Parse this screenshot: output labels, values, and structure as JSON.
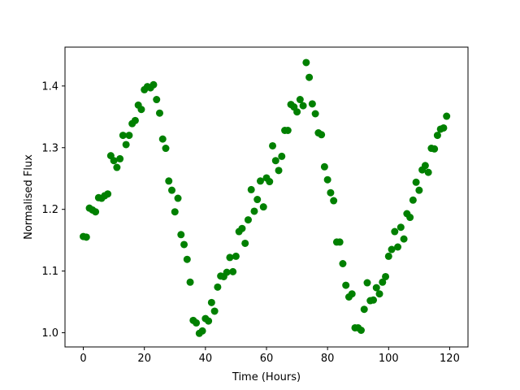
{
  "chart_data": {
    "type": "scatter",
    "title": "",
    "xlabel": "Time (Hours)",
    "ylabel": "Normalised Flux",
    "xlim": [
      -6,
      126
    ],
    "ylim": [
      0.977,
      1.463
    ],
    "xticks": [
      0,
      20,
      40,
      60,
      80,
      100,
      120
    ],
    "yticks": [
      1.0,
      1.1,
      1.2,
      1.3,
      1.4
    ],
    "grid": false,
    "legend": "none",
    "marker_color": "#008000",
    "series": [
      {
        "points": [
          [
            0,
            1.156
          ],
          [
            1,
            1.155
          ],
          [
            2,
            1.202
          ],
          [
            3,
            1.199
          ],
          [
            4,
            1.196
          ],
          [
            5,
            1.219
          ],
          [
            6,
            1.218
          ],
          [
            7,
            1.222
          ],
          [
            8,
            1.225
          ],
          [
            9,
            1.287
          ],
          [
            10,
            1.279
          ],
          [
            11,
            1.268
          ],
          [
            12,
            1.282
          ],
          [
            13,
            1.32
          ],
          [
            14,
            1.305
          ],
          [
            15,
            1.32
          ],
          [
            16,
            1.339
          ],
          [
            17,
            1.344
          ],
          [
            18,
            1.369
          ],
          [
            19,
            1.362
          ],
          [
            20,
            1.394
          ],
          [
            21,
            1.399
          ],
          [
            22,
            1.397
          ],
          [
            23,
            1.402
          ],
          [
            24,
            1.378
          ],
          [
            25,
            1.356
          ],
          [
            26,
            1.314
          ],
          [
            27,
            1.299
          ],
          [
            28,
            1.246
          ],
          [
            29,
            1.231
          ],
          [
            30,
            1.196
          ],
          [
            31,
            1.218
          ],
          [
            32,
            1.159
          ],
          [
            33,
            1.143
          ],
          [
            34,
            1.119
          ],
          [
            35,
            1.082
          ],
          [
            36,
            1.02
          ],
          [
            37,
            1.016
          ],
          [
            38,
            0.999
          ],
          [
            39,
            1.003
          ],
          [
            40,
            1.023
          ],
          [
            41,
            1.019
          ],
          [
            42,
            1.049
          ],
          [
            43,
            1.035
          ],
          [
            44,
            1.074
          ],
          [
            45,
            1.092
          ],
          [
            46,
            1.091
          ],
          [
            47,
            1.098
          ],
          [
            48,
            1.122
          ],
          [
            49,
            1.099
          ],
          [
            50,
            1.124
          ],
          [
            51,
            1.164
          ],
          [
            52,
            1.169
          ],
          [
            53,
            1.145
          ],
          [
            54,
            1.183
          ],
          [
            55,
            1.232
          ],
          [
            56,
            1.197
          ],
          [
            57,
            1.216
          ],
          [
            58,
            1.246
          ],
          [
            59,
            1.204
          ],
          [
            60,
            1.251
          ],
          [
            61,
            1.245
          ],
          [
            62,
            1.303
          ],
          [
            63,
            1.279
          ],
          [
            64,
            1.263
          ],
          [
            65,
            1.286
          ],
          [
            66,
            1.328
          ],
          [
            67,
            1.328
          ],
          [
            68,
            1.37
          ],
          [
            69,
            1.366
          ],
          [
            70,
            1.358
          ],
          [
            71,
            1.378
          ],
          [
            72,
            1.368
          ],
          [
            73,
            1.438
          ],
          [
            74,
            1.414
          ],
          [
            75,
            1.371
          ],
          [
            76,
            1.355
          ],
          [
            77,
            1.324
          ],
          [
            78,
            1.321
          ],
          [
            79,
            1.269
          ],
          [
            80,
            1.248
          ],
          [
            81,
            1.227
          ],
          [
            82,
            1.214
          ],
          [
            83,
            1.147
          ],
          [
            84,
            1.147
          ],
          [
            85,
            1.112
          ],
          [
            86,
            1.077
          ],
          [
            87,
            1.058
          ],
          [
            88,
            1.063
          ],
          [
            89,
            1.008
          ],
          [
            90,
            1.008
          ],
          [
            91,
            1.004
          ],
          [
            92,
            1.038
          ],
          [
            93,
            1.081
          ],
          [
            94,
            1.052
          ],
          [
            95,
            1.053
          ],
          [
            96,
            1.073
          ],
          [
            97,
            1.063
          ],
          [
            98,
            1.082
          ],
          [
            99,
            1.091
          ],
          [
            100,
            1.124
          ],
          [
            101,
            1.135
          ],
          [
            102,
            1.164
          ],
          [
            103,
            1.139
          ],
          [
            104,
            1.171
          ],
          [
            105,
            1.152
          ],
          [
            106,
            1.193
          ],
          [
            107,
            1.187
          ],
          [
            108,
            1.215
          ],
          [
            109,
            1.244
          ],
          [
            110,
            1.231
          ],
          [
            111,
            1.264
          ],
          [
            112,
            1.271
          ],
          [
            113,
            1.26
          ],
          [
            114,
            1.299
          ],
          [
            115,
            1.298
          ],
          [
            116,
            1.32
          ],
          [
            117,
            1.33
          ],
          [
            118,
            1.332
          ],
          [
            119,
            1.351
          ]
        ]
      }
    ]
  }
}
